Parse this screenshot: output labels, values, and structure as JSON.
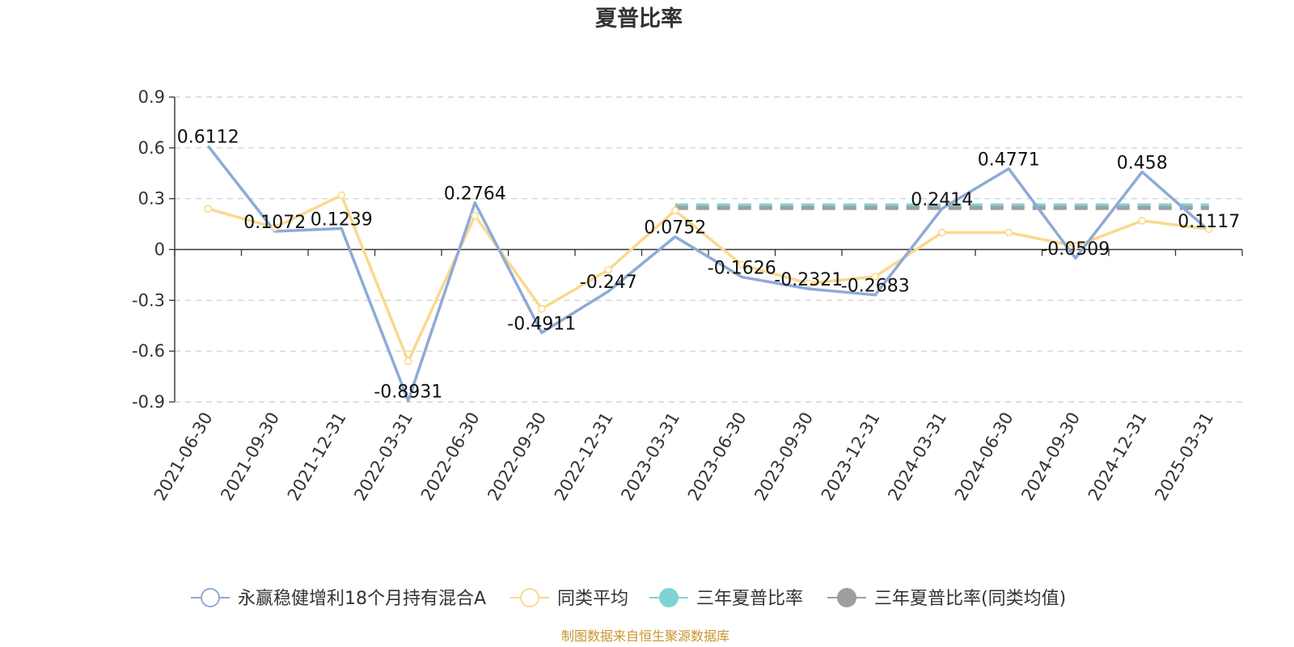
{
  "chart_data": {
    "type": "line",
    "title": "夏普比率",
    "categories": [
      "2021-06-30",
      "2021-09-30",
      "2021-12-31",
      "2022-03-31",
      "2022-06-30",
      "2022-09-30",
      "2022-12-31",
      "2023-03-31",
      "2023-06-30",
      "2023-09-30",
      "2023-12-31",
      "2024-03-31",
      "2024-06-30",
      "2024-09-30",
      "2024-12-31",
      "2025-03-31"
    ],
    "ylim": [
      -0.9,
      0.9
    ],
    "yticks": [
      "0.9",
      "0.6",
      "0.3",
      "0",
      "-0.3",
      "-0.6",
      "-0.9"
    ],
    "grid": true,
    "legend_position": "bottom",
    "series": [
      {
        "name": "永赢稳健增利18个月持有混合A",
        "color": "#8eaad6",
        "values": [
          0.6112,
          0.1072,
          0.1239,
          -0.8931,
          0.2764,
          -0.4911,
          -0.247,
          0.0752,
          -0.1626,
          -0.2321,
          -0.2683,
          0.2414,
          0.4771,
          -0.0509,
          0.458,
          0.1117
        ],
        "labels": [
          "0.6112",
          "0.1072",
          "0.1239",
          "-0.8931",
          "0.2764",
          "-0.4911",
          "-0.247",
          "0.0752",
          "-0.1626",
          "-0.2321",
          "-0.2683",
          "0.2414",
          "0.4771",
          "-0.0509",
          "0.458",
          "0.1117"
        ]
      },
      {
        "name": "同类平均",
        "color": "#fbd88e",
        "values": [
          0.24,
          0.13,
          0.32,
          -0.66,
          0.2,
          -0.35,
          -0.12,
          0.23,
          -0.09,
          -0.2,
          -0.16,
          0.1,
          0.1,
          0.02,
          0.17,
          0.12
        ]
      },
      {
        "name": "三年夏普比率",
        "color": "#7fd3d3",
        "start_category": "2023-03-31",
        "end_category": "2025-03-31",
        "value": 0.26
      },
      {
        "name": "三年夏普比率(同类均值)",
        "color": "#9e9e9e",
        "start_category": "2023-03-31",
        "end_category": "2025-03-31",
        "value": 0.245
      }
    ],
    "source": "制图数据来自恒生聚源数据库"
  }
}
